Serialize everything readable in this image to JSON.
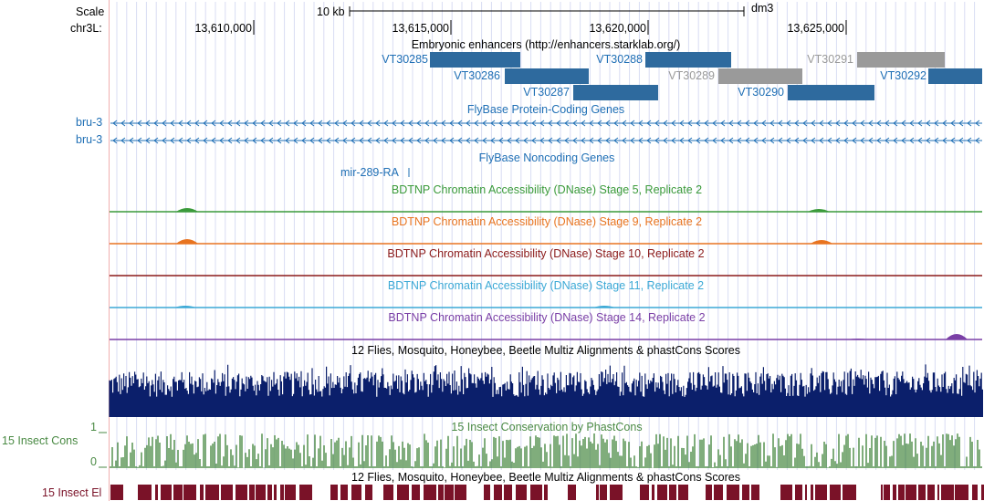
{
  "ruler": {
    "scale_label": "Scale",
    "chrom_label": "chr3L:",
    "scale_bar_text": "10 kb",
    "assembly": "dm3",
    "coords": [
      "13,610,000",
      "13,615,000",
      "13,620,000",
      "13,625,000"
    ]
  },
  "tracks": {
    "enhancers": {
      "title": "Embryonic enhancers (http://enhancers.starklab.org/)",
      "items": [
        "VT30285",
        "VT30286",
        "VT30287",
        "VT30288",
        "VT30289",
        "VT30290",
        "VT30291",
        "VT30292"
      ]
    },
    "flybase_coding": {
      "title": "FlyBase Protein-Coding Genes",
      "genes": [
        "bru-3",
        "bru-3"
      ]
    },
    "flybase_noncoding": {
      "title": "FlyBase Noncoding Genes",
      "gene": "mir-289-RA"
    },
    "dnase": [
      {
        "title": "BDTNP Chromatin Accessibility (DNase) Stage 5, Replicate 2",
        "color": "#3a9a3a"
      },
      {
        "title": "BDTNP Chromatin Accessibility (DNase) Stage 9, Replicate 2",
        "color": "#e87420"
      },
      {
        "title": "BDTNP Chromatin Accessibility (DNase) Stage 10, Replicate 2",
        "color": "#8b1a1a"
      },
      {
        "title": "BDTNP Chromatin Accessibility (DNase) Stage 11, Replicate 2",
        "color": "#3ca9d6"
      },
      {
        "title": "BDTNP Chromatin Accessibility (DNase) Stage 14, Replicate 2",
        "color": "#7a3fa6"
      }
    ],
    "multiz": {
      "title": "12 Flies, Mosquito, Honeybee, Beetle Multiz Alignments & phastCons Scores",
      "color": "#0b1f6b"
    },
    "phastcons": {
      "title": "15 Insect Conservation by PhastCons",
      "side_label": "15 Insect Cons",
      "axis_max": "1",
      "axis_min": "0",
      "color": "#4a8a44"
    },
    "elements": {
      "title": "12 Flies, Mosquito, Honeybee, Beetle Multiz Alignments & phastCons Scores",
      "side_label": "15 Insect El",
      "color": "#7a1228"
    }
  },
  "colors": {
    "link_blue": "#1f6fb5",
    "enhancer_blue": "#2e6a9e",
    "enhancer_gray": "#9a9a9a",
    "grid": "#d8dcf3",
    "gutter": "#f0b0b0"
  }
}
